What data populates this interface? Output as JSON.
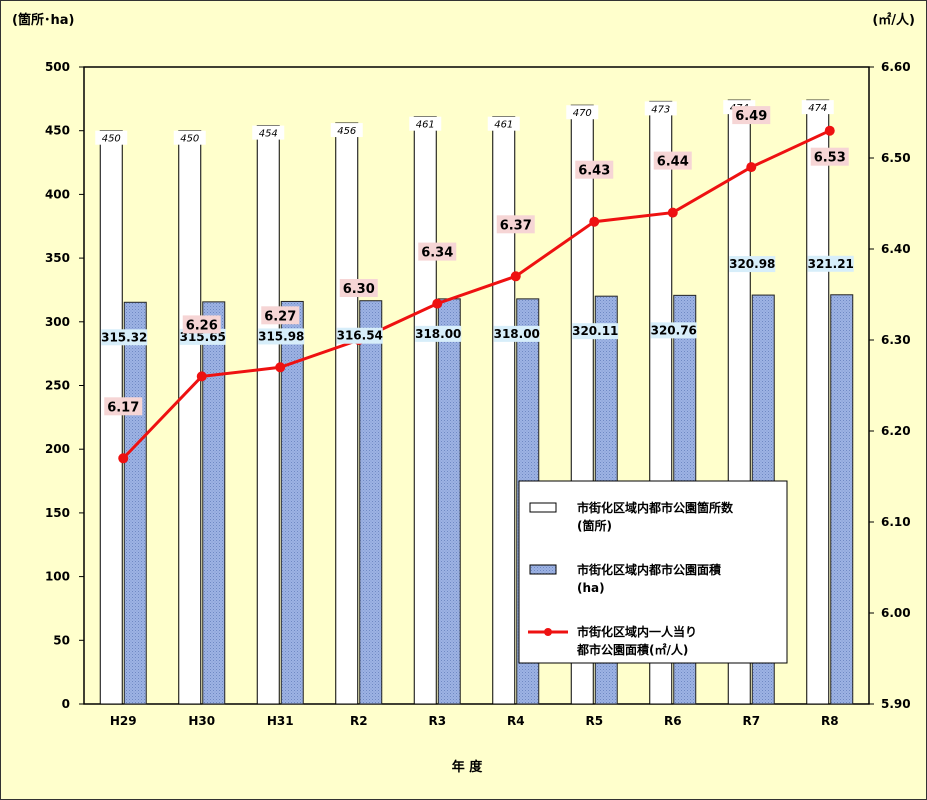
{
  "chart_data": {
    "type": "bar",
    "xlabel": "年 度",
    "y_left_label": "(箇所･ha)",
    "y_right_label": "(㎡/人)",
    "categories": [
      "H29",
      "H30",
      "H31",
      "R2",
      "R3",
      "R4",
      "R5",
      "R6",
      "R7",
      "R8"
    ],
    "y_left_ticks": [
      "500",
      "450",
      "400",
      "350",
      "300",
      "250",
      "200",
      "150",
      "100",
      "50",
      "0"
    ],
    "y_right_ticks": [
      "6.60",
      "6.50",
      "6.40",
      "6.30",
      "6.20",
      "6.10",
      "6.00",
      "5.90"
    ],
    "ylim_left": [
      0,
      500
    ],
    "ylim_right": [
      5.9,
      6.6
    ],
    "grid": false,
    "legend_position": "bottom-right",
    "series": [
      {
        "name": "市街化区域内都市公園箇所数",
        "name_unit": "(箇所)",
        "kind": "bar",
        "axis": "left",
        "color": "#ffffff",
        "values": [
          450,
          450,
          454,
          456,
          461,
          461,
          470,
          473,
          474,
          474
        ],
        "labels": [
          "450",
          "450",
          "454",
          "456",
          "461",
          "461",
          "470",
          "473",
          "474",
          "474"
        ]
      },
      {
        "name": "市街化区域内都市公園面積",
        "name_unit": "(ha)",
        "kind": "bar",
        "axis": "left",
        "color": "#9db3e3",
        "values": [
          315.32,
          315.65,
          315.98,
          316.54,
          318.0,
          318.0,
          320.11,
          320.76,
          320.98,
          321.21
        ],
        "labels": [
          "315.32",
          "315.65",
          "315.98",
          "316.54",
          "318.00",
          "318.00",
          "320.11",
          "320.76",
          "320.98",
          "321.21"
        ]
      },
      {
        "name": "市街化区域内一人当り",
        "name_line2": "都市公園面積(㎡/人)",
        "kind": "line",
        "axis": "right",
        "color": "#ee1111",
        "values": [
          6.17,
          6.26,
          6.27,
          6.3,
          6.34,
          6.37,
          6.43,
          6.44,
          6.49,
          6.53
        ],
        "labels": [
          "6.17",
          "6.26",
          "6.27",
          "6.30",
          "6.34",
          "6.37",
          "6.43",
          "6.44",
          "6.49",
          "6.53"
        ]
      }
    ]
  }
}
